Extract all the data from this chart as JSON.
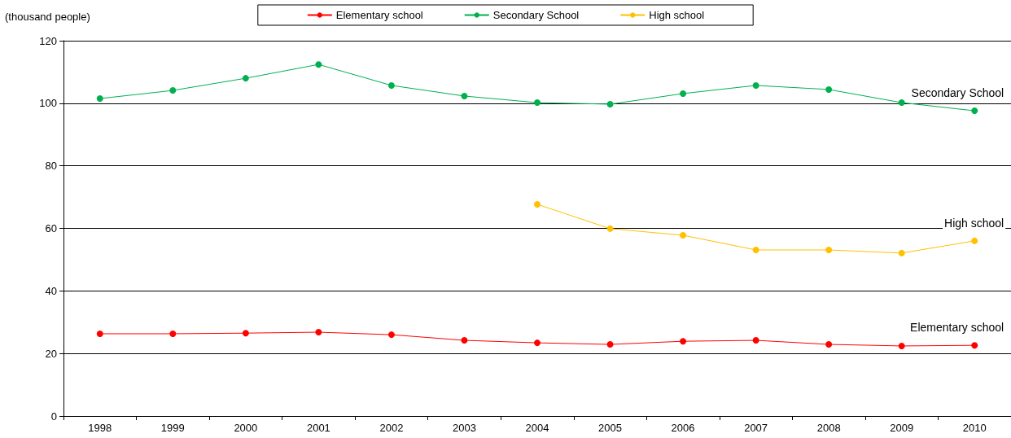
{
  "chart_data": {
    "type": "line",
    "ylabel": "(thousand people)",
    "categories": [
      "1998",
      "1999",
      "2000",
      "2001",
      "2002",
      "2003",
      "2004",
      "2005",
      "2006",
      "2007",
      "2008",
      "2009",
      "2010"
    ],
    "series": [
      {
        "name": "Elementary school",
        "color": "#ff0000",
        "values": [
          26.3,
          26.3,
          26.5,
          26.8,
          26,
          24.2,
          23.4,
          22.9,
          23.9,
          24.2,
          22.9,
          22.4,
          22.6
        ]
      },
      {
        "name": "Secondary School",
        "color": "#00b050",
        "values": [
          101.5,
          104.1,
          108,
          112.4,
          105.7,
          102.3,
          100.2,
          99.7,
          103.1,
          105.7,
          104.4,
          100.2,
          97.6
        ]
      },
      {
        "name": "High school",
        "color": "#ffc000",
        "values": [
          null,
          null,
          null,
          null,
          null,
          null,
          67.7,
          59.9,
          57.8,
          53.1,
          53.1,
          52.1,
          56
        ]
      }
    ],
    "ylim": [
      0,
      120
    ],
    "yticks": [
      0,
      20,
      40,
      60,
      80,
      100,
      120
    ],
    "grid": "y",
    "legend": "top",
    "marker": "circle"
  }
}
